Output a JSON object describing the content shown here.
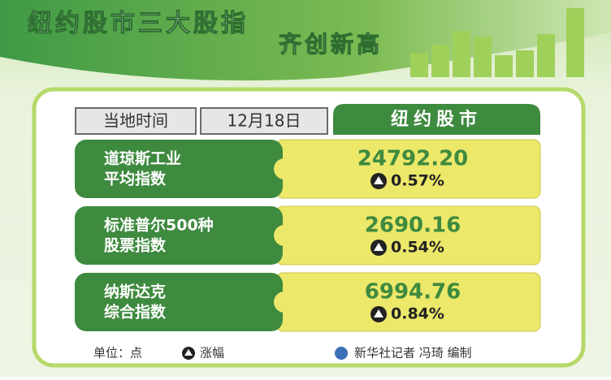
{
  "header": {
    "title_line1": "纽约股市三大股指",
    "title_line2": "齐创新高"
  },
  "table_header": {
    "time_label": "当地时间",
    "date": "12月18日",
    "market": "纽约股市"
  },
  "rows": [
    {
      "name_lines": [
        "道琼斯工业",
        "平均指数"
      ],
      "value": "24792.20",
      "change": "0.57%"
    },
    {
      "name_lines": [
        "标准普尔500种",
        "股票指数"
      ],
      "value": "2690.16",
      "change": "0.54%"
    },
    {
      "name_lines": [
        "纳斯达克",
        "综合指数"
      ],
      "value": "6994.76",
      "change": "0.84%"
    }
  ],
  "footer": {
    "unit": "单位：点",
    "rise_label": "涨幅",
    "credit": "新华社记者 冯琦 编制"
  }
}
